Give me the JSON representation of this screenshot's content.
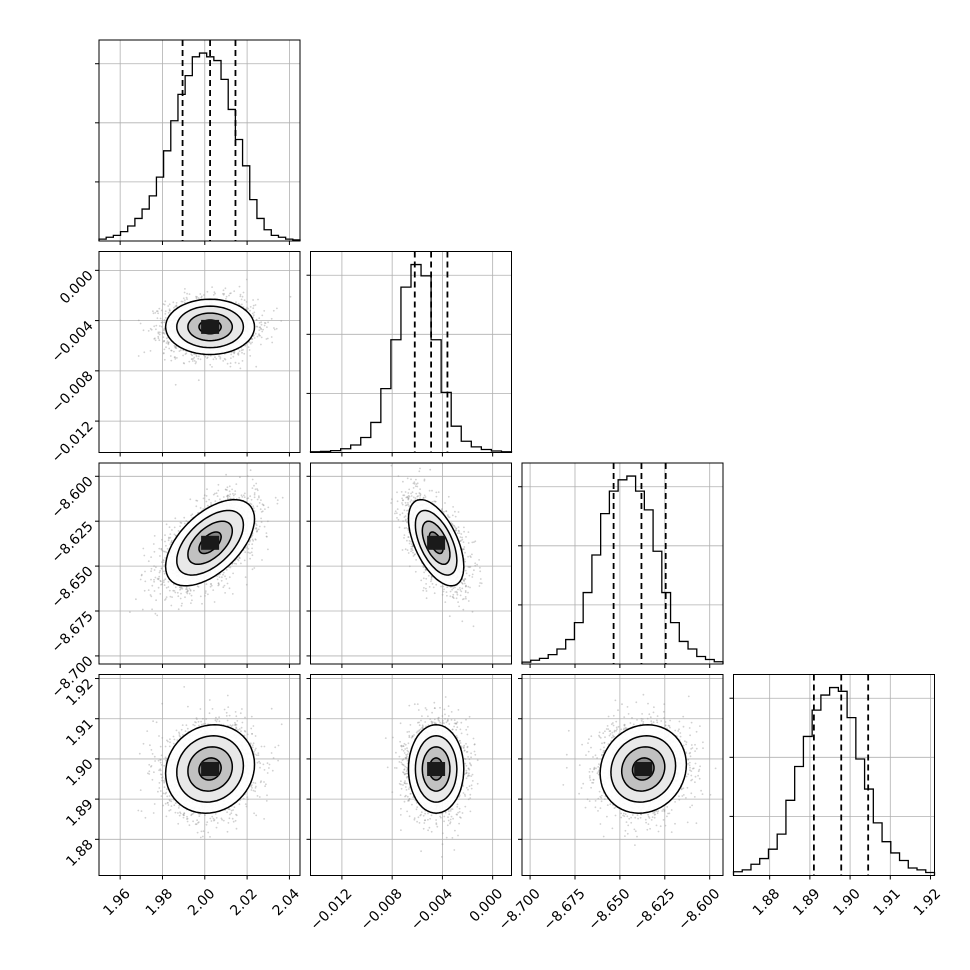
{
  "chart_data": {
    "type": "corner",
    "grid": true,
    "colors": {
      "line": "#000000",
      "grid": "#b0b0b0",
      "scatter": "#9a9a9a"
    },
    "parameters": [
      {
        "range": [
          1.95,
          2.045
        ],
        "ticks": [
          1.96,
          1.98,
          2.0,
          2.02,
          2.04
        ],
        "tick_labels": [
          "1.96",
          "1.98",
          "2.00",
          "2.02",
          "2.04"
        ],
        "mean": 2.0025,
        "sigma": 0.0105,
        "quantiles": [
          1.9895,
          2.0025,
          2.0145
        ],
        "histogram": [
          0.5,
          1,
          1.5,
          2.5,
          4,
          6,
          8.5,
          12,
          17,
          24,
          32,
          39,
          44,
          49,
          50,
          49,
          48,
          43,
          35,
          27,
          20,
          11,
          6,
          3,
          1.5,
          1,
          0.5,
          0.3
        ]
      },
      {
        "range": [
          -0.0145,
          0.0015
        ],
        "ticks": [
          -0.012,
          -0.008,
          -0.004,
          0.0
        ],
        "tick_labels": [
          "−0.012",
          "−0.008",
          "−0.004",
          "0.000"
        ],
        "mean": -0.0045,
        "sigma": 0.0011,
        "quantiles": [
          -0.0062,
          -0.0049,
          -0.0036
        ],
        "histogram": [
          0.2,
          0.3,
          0.5,
          1,
          2,
          4,
          8,
          17,
          30,
          44,
          50,
          47,
          30,
          16,
          7,
          3,
          1.5,
          0.8,
          0.4,
          0.2
        ]
      },
      {
        "range": [
          -8.7045,
          -8.5926
        ],
        "ticks": [
          -8.7,
          -8.675,
          -8.65,
          -8.625,
          -8.6
        ],
        "tick_labels": [
          "−8.700",
          "−8.675",
          "−8.650",
          "−8.625",
          "−8.600"
        ],
        "mean": -8.637,
        "sigma": 0.012,
        "quantiles": [
          -8.6535,
          -8.638,
          -8.6245
        ],
        "histogram": [
          0.5,
          1,
          1.5,
          2.5,
          4,
          6.5,
          11,
          19,
          29,
          40,
          46,
          49,
          50,
          46,
          41,
          30,
          19,
          11,
          6,
          4,
          2,
          1.2,
          0.6
        ]
      },
      {
        "range": [
          1.871,
          1.921
        ],
        "ticks": [
          1.88,
          1.89,
          1.9,
          1.91,
          1.92
        ],
        "tick_labels": [
          "1.88",
          "1.89",
          "1.90",
          "1.91",
          "1.92"
        ],
        "mean": 1.8975,
        "sigma": 0.0055,
        "quantiles": [
          1.891,
          1.8978,
          1.9045
        ],
        "histogram": [
          1,
          1.5,
          3,
          4.5,
          7,
          11,
          20,
          29,
          37,
          44,
          48,
          50,
          49,
          42,
          31,
          23,
          14,
          9,
          6,
          4,
          2,
          1.5,
          0.8
        ]
      }
    ],
    "correlations": {
      "1-0": 0.0,
      "2-0": 0.55,
      "2-1": -0.55,
      "3-0": 0.1,
      "3-1": 0.0,
      "3-2": 0.1
    },
    "contour_levels_sigma": [
      0.5,
      1.0,
      1.5,
      2.0
    ]
  }
}
